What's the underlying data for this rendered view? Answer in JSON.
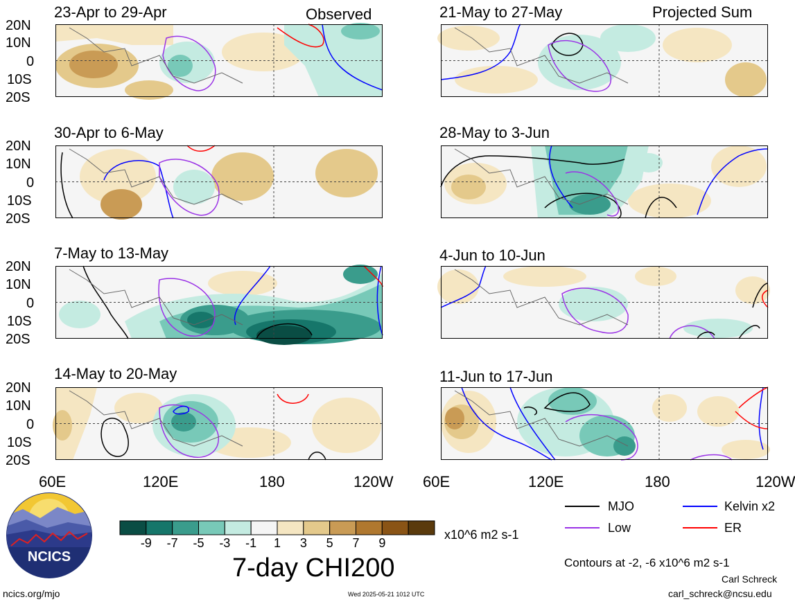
{
  "panels": [
    {
      "title": "23-Apr to 29-Apr",
      "note": "Observed"
    },
    {
      "title": "30-Apr to 6-May",
      "note": ""
    },
    {
      "title": "7-May to 13-May",
      "note": ""
    },
    {
      "title": "14-May to 20-May",
      "note": ""
    },
    {
      "title": "21-May to 27-May",
      "note": "Projected Sum"
    },
    {
      "title": "28-May to 3-Jun",
      "note": ""
    },
    {
      "title": "4-Jun to 10-Jun",
      "note": ""
    },
    {
      "title": "11-Jun to 17-Jun",
      "note": ""
    }
  ],
  "lat_labels": [
    "20N",
    "10N",
    "0",
    "10S",
    "20S"
  ],
  "lon_labels": [
    "60E",
    "120E",
    "180",
    "120W"
  ],
  "lon_labels_right": [
    "60E",
    "120E",
    "180",
    "120W"
  ],
  "colorbar": {
    "colors": [
      "#0a4d44",
      "#16766a",
      "#3a9c8c",
      "#78c9b8",
      "#c4ebe1",
      "#f5f5f5",
      "#f5e6c2",
      "#e4c98b",
      "#c99b55",
      "#b0782f",
      "#8a5416",
      "#5a3a0c"
    ],
    "labels": [
      "-9",
      "-7",
      "-5",
      "-3",
      "-1",
      "1",
      "3",
      "5",
      "7",
      "9"
    ],
    "units": "x10^6 m2 s-1"
  },
  "chart_title": "7-day CHI200",
  "legend": [
    {
      "label": "MJO",
      "color": "#000000"
    },
    {
      "label": "Kelvin x2",
      "color": "#0000ff"
    },
    {
      "label": "Low",
      "color": "#9a32e6"
    },
    {
      "label": "ER",
      "color": "#ff0000"
    }
  ],
  "contour_note": "Contours at -2, -6 x10^6 m2 s-1",
  "author": "Carl Schreck",
  "email": "carl_schreck@ncsu.edu",
  "logo_text": "NCICS",
  "site": "ncics.org/mjo",
  "timestamp": "Wed 2025-05-21 1012 UTC"
}
